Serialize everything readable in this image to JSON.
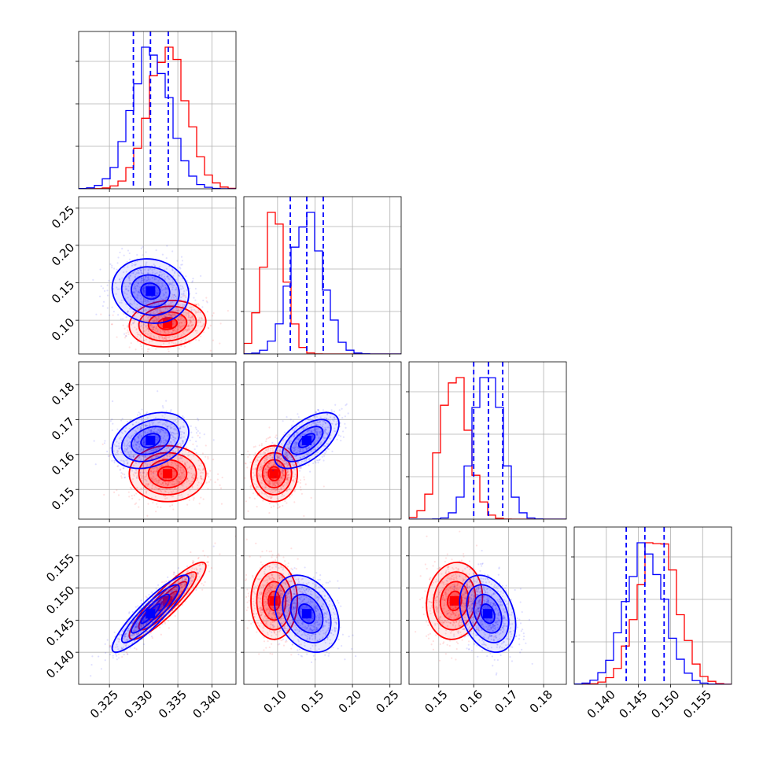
{
  "colors": {
    "series_a": "#ff0000",
    "series_b": "#0000ff",
    "grid": "#b0b0b0"
  },
  "chart_data": {
    "type": "corner",
    "title": "",
    "grid": true,
    "legend": "none",
    "quantile_lines": {
      "series": "blue",
      "style": "dashed"
    },
    "parameters": [
      {
        "label": "",
        "range": [
          0.3205,
          0.3435
        ],
        "ticks": [
          0.325,
          0.33,
          0.335,
          0.34
        ],
        "tick_labels": [
          "0.325",
          "0.330",
          "0.335",
          "0.340"
        ]
      },
      {
        "label": "",
        "range": [
          0.055,
          0.265
        ],
        "ticks": [
          0.1,
          0.15,
          0.2,
          0.25
        ],
        "tick_labels": [
          "0.10",
          "0.15",
          "0.20",
          "0.25"
        ]
      },
      {
        "label": "",
        "range": [
          0.1415,
          0.1865
        ],
        "ticks": [
          0.15,
          0.16,
          0.17,
          0.18
        ],
        "tick_labels": [
          "0.15",
          "0.16",
          "0.17",
          "0.18"
        ]
      },
      {
        "label": "",
        "range": [
          0.135,
          0.1595
        ],
        "ticks": [
          0.14,
          0.145,
          0.15,
          0.155
        ],
        "tick_labels": [
          "0.140",
          "0.145",
          "0.150",
          "0.155"
        ]
      }
    ],
    "series": [
      {
        "name": "",
        "color": "#ff0000",
        "mean": [
          0.3335,
          0.0955,
          0.1545,
          0.148
        ],
        "std": [
          0.0028,
          0.0155,
          0.004,
          0.003
        ],
        "correlation": [
          [
            1.0,
            0.1,
            0.0,
            0.9
          ],
          [
            0.1,
            1.0,
            0.0,
            0.0
          ],
          [
            0.0,
            0.0,
            1.0,
            0.1
          ],
          [
            0.9,
            0.0,
            0.1,
            1.0
          ]
        ],
        "quantiles": null
      },
      {
        "name": "",
        "color": "#0000ff",
        "mean": [
          0.331,
          0.139,
          0.164,
          0.146
        ],
        "std": [
          0.0028,
          0.0215,
          0.004,
          0.003
        ],
        "correlation": [
          [
            1.0,
            -0.1,
            0.3,
            0.9
          ],
          [
            -0.1,
            1.0,
            0.6,
            -0.3
          ],
          [
            0.3,
            0.6,
            1.0,
            -0.3
          ],
          [
            0.9,
            -0.3,
            -0.3,
            1.0
          ]
        ],
        "quantiles": [
          [
            0.3285,
            0.331,
            0.3336
          ],
          [
            0.117,
            0.139,
            0.161
          ],
          [
            0.16,
            0.1642,
            0.1683
          ],
          [
            0.1431,
            0.146,
            0.149
          ]
        ]
      }
    ]
  }
}
